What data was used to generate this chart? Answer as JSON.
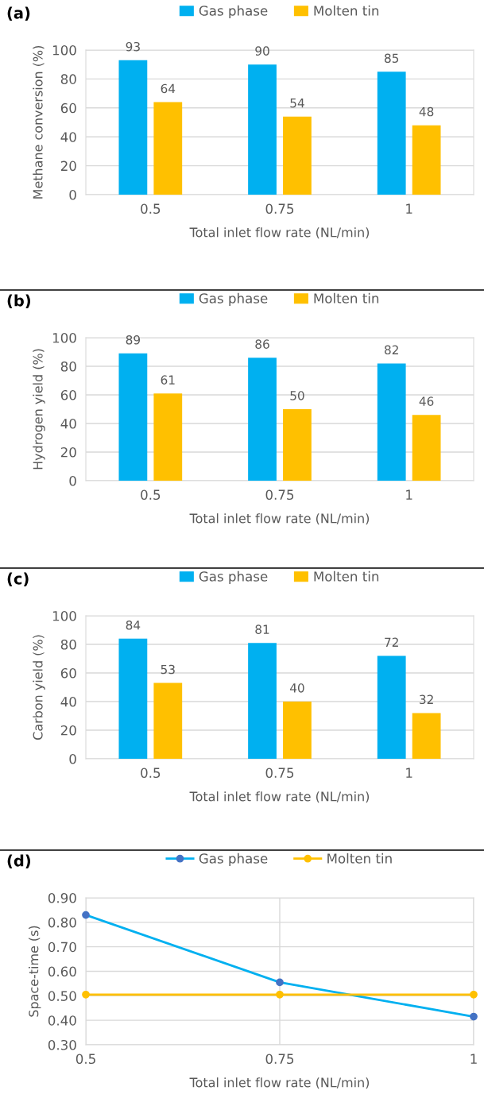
{
  "chart_data": [
    {
      "type": "bar",
      "title": "(a)",
      "xlabel": "Total inlet flow rate (NL/min)",
      "ylabel": "Methane conversion (%)",
      "categories": [
        "0.5",
        "0.75",
        "1"
      ],
      "series": [
        {
          "name": "Gas phase",
          "color": "#00b0f0",
          "values": [
            93,
            90,
            85
          ]
        },
        {
          "name": "Molten tin",
          "color": "#ffc000",
          "values": [
            64,
            54,
            48
          ]
        }
      ],
      "ylim": [
        0,
        100
      ],
      "yticks": [
        0,
        20,
        40,
        60,
        80,
        100
      ],
      "grid": "y",
      "legend": "top",
      "data_labels": true
    },
    {
      "type": "bar",
      "title": "(b)",
      "xlabel": "Total inlet flow rate (NL/min)",
      "ylabel": "Hydrogen yield (%)",
      "categories": [
        "0.5",
        "0.75",
        "1"
      ],
      "series": [
        {
          "name": "Gas phase",
          "color": "#00b0f0",
          "values": [
            89,
            86,
            82
          ]
        },
        {
          "name": "Molten tin",
          "color": "#ffc000",
          "values": [
            61,
            50,
            46
          ]
        }
      ],
      "ylim": [
        0,
        100
      ],
      "yticks": [
        0,
        20,
        40,
        60,
        80,
        100
      ],
      "grid": "y",
      "legend": "top",
      "data_labels": true
    },
    {
      "type": "bar",
      "title": "(c)",
      "xlabel": "Total inlet flow rate (NL/min)",
      "ylabel": "Carbon yield (%)",
      "categories": [
        "0.5",
        "0.75",
        "1"
      ],
      "series": [
        {
          "name": "Gas phase",
          "color": "#00b0f0",
          "values": [
            84,
            81,
            72
          ]
        },
        {
          "name": "Molten tin",
          "color": "#ffc000",
          "values": [
            53,
            40,
            32
          ]
        }
      ],
      "ylim": [
        0,
        100
      ],
      "yticks": [
        0,
        20,
        40,
        60,
        80,
        100
      ],
      "grid": "y",
      "legend": "top",
      "data_labels": true
    },
    {
      "type": "line",
      "title": "(d)",
      "xlabel": "Total inlet flow rate (NL/min)",
      "ylabel": "Space-time (s)",
      "x": [
        0.5,
        0.75,
        1
      ],
      "series": [
        {
          "name": "Gas phase",
          "color": "#00b0f0",
          "values": [
            0.83,
            0.555,
            0.415
          ]
        },
        {
          "name": "Molten tin",
          "color": "#ffc000",
          "values": [
            0.505,
            0.505,
            0.505
          ]
        }
      ],
      "xlim": [
        0.5,
        1
      ],
      "xticks": [
        0.5,
        0.75,
        1
      ],
      "ylim": [
        0.3,
        0.9
      ],
      "yticks": [
        {
          "value": 0.3,
          "label": "0.30"
        },
        {
          "value": 0.4,
          "label": "0.40"
        },
        {
          "value": 0.5,
          "label": "0.50"
        },
        {
          "value": 0.6,
          "label": "0.60"
        },
        {
          "value": 0.7,
          "label": "0.70"
        },
        {
          "value": 0.8,
          "label": "0.80"
        },
        {
          "value": 0.9,
          "label": "0.90"
        }
      ],
      "grid": true,
      "legend": "top",
      "marker": "circle",
      "line_style": "solid"
    }
  ]
}
